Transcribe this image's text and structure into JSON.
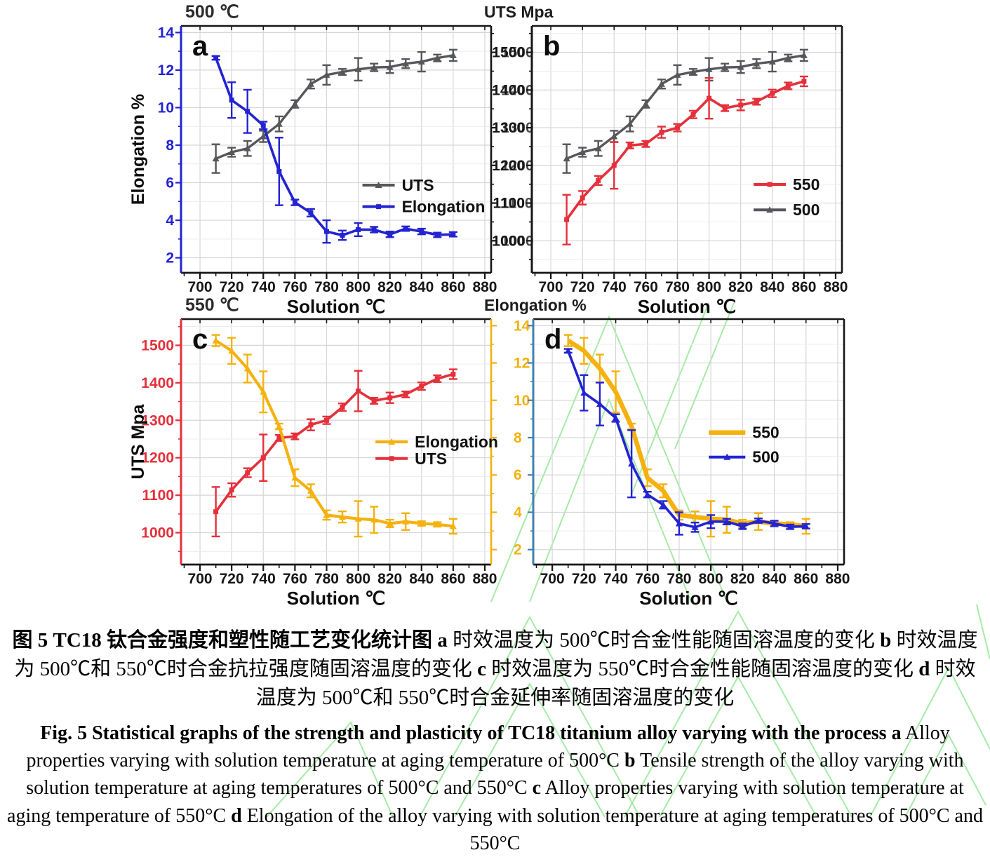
{
  "colors": {
    "blue": "#2323d2",
    "gray": "#56575a",
    "gray_label": "#4a4b4d",
    "red": "#e4303a",
    "yellow": "#f5b10d",
    "axis_d_blue": "#4180b2",
    "dark": "#161616",
    "grid": "#d6d6d6",
    "grid_minor": "#ececec",
    "watermark": "#8fe68f",
    "legend_text": "#111111"
  },
  "chart_data": [
    {
      "panel": "a",
      "type": "line",
      "tag": "a",
      "header_left": "500 ℃",
      "right_axis_title": "UTS Mpa",
      "left_axis_title": "Elongation %",
      "xlabel": "Solution ℃",
      "x_range": [
        688,
        884
      ],
      "x_ticks": [
        700,
        720,
        740,
        760,
        780,
        800,
        820,
        840,
        860,
        880
      ],
      "x_minor": [
        690,
        710,
        730,
        750,
        770,
        790,
        810,
        830,
        850,
        870
      ],
      "left_axis": {
        "range": [
          1.2,
          14.35
        ],
        "ticks": [
          2,
          4,
          6,
          8,
          10,
          12,
          14
        ],
        "minor": [
          3,
          5,
          7,
          9,
          11,
          13
        ],
        "spine": "blue",
        "labels": "blue",
        "label_dx": -10
      },
      "right_axis": {
        "range": [
          915,
          1570
        ],
        "ticks": [
          1000,
          1100,
          1200,
          1300,
          1400,
          1500
        ],
        "minor": [
          950,
          1050,
          1150,
          1250,
          1350,
          1450,
          1550
        ],
        "spine": "dark",
        "labels": "gray_label",
        "label_dx": 14
      },
      "x": [
        710,
        720,
        730,
        740,
        750,
        760,
        770,
        780,
        790,
        800,
        810,
        820,
        830,
        840,
        850,
        860
      ],
      "series": [
        {
          "name": "UTS",
          "axis": "right",
          "color": "gray",
          "marker": "triangle",
          "lw": 3.4,
          "values": [
            1218,
            1235,
            1245,
            1277,
            1310,
            1363,
            1416,
            1440,
            1448,
            1455,
            1460,
            1461,
            1470,
            1475,
            1485,
            1492
          ],
          "errors": [
            38,
            12,
            20,
            15,
            20,
            10,
            12,
            26,
            8,
            30,
            10,
            16,
            12,
            26,
            9,
            15
          ]
        },
        {
          "name": "Elongation",
          "axis": "left",
          "color": "blue",
          "marker": "square",
          "lw": 3.6,
          "values": [
            12.65,
            10.4,
            9.8,
            9.05,
            6.6,
            4.95,
            4.4,
            3.4,
            3.2,
            3.5,
            3.5,
            3.25,
            3.55,
            3.4,
            3.22,
            3.25
          ],
          "errors": [
            0.1,
            0.95,
            1.15,
            0.2,
            1.8,
            0.15,
            0.2,
            0.6,
            0.25,
            0.35,
            0.15,
            0.15,
            0.12,
            0.15,
            0.12,
            0.12
          ]
        }
      ],
      "legend": {
        "lx": 0.585,
        "rows": [
          0.645,
          0.732
        ],
        "len": 46
      }
    },
    {
      "panel": "b",
      "type": "line",
      "tag": "b",
      "xlabel": "Solution ℃",
      "x_range": [
        688,
        884
      ],
      "x_ticks": [
        700,
        720,
        740,
        760,
        780,
        800,
        820,
        840,
        860,
        880
      ],
      "x_minor": [
        690,
        710,
        730,
        750,
        770,
        790,
        810,
        830,
        850,
        870
      ],
      "left_axis": {
        "range": [
          915,
          1570
        ],
        "ticks": [
          1000,
          1100,
          1200,
          1300,
          1400,
          1500
        ],
        "minor": [
          950,
          1050,
          1150,
          1250,
          1350,
          1450,
          1550
        ],
        "spine": "dark",
        "labels": "dark",
        "label_dx": -10
      },
      "x": [
        710,
        720,
        730,
        740,
        750,
        760,
        770,
        780,
        790,
        800,
        810,
        820,
        830,
        840,
        850,
        860
      ],
      "series": [
        {
          "name": "500",
          "axis": "left",
          "color": "gray",
          "marker": "triangle",
          "lw": 3.4,
          "values": [
            1218,
            1235,
            1245,
            1277,
            1310,
            1363,
            1416,
            1440,
            1448,
            1455,
            1460,
            1461,
            1470,
            1475,
            1485,
            1492
          ],
          "errors": [
            38,
            12,
            20,
            15,
            20,
            10,
            12,
            26,
            8,
            30,
            10,
            16,
            12,
            26,
            9,
            15
          ]
        },
        {
          "name": "550",
          "axis": "left",
          "color": "red",
          "marker": "square",
          "lw": 3.6,
          "values": [
            1056,
            1114,
            1160,
            1200,
            1253,
            1257,
            1288,
            1300,
            1335,
            1378,
            1352,
            1360,
            1369,
            1391,
            1411,
            1423
          ],
          "errors": [
            66,
            18,
            12,
            62,
            8,
            8,
            15,
            10,
            10,
            54,
            8,
            14,
            8,
            10,
            9,
            13
          ]
        }
      ],
      "legend_order": [
        "550",
        "500"
      ],
      "legend": {
        "lx": 0.715,
        "rows": [
          0.642,
          0.745
        ],
        "len": 46
      }
    },
    {
      "panel": "c",
      "type": "line",
      "tag": "c",
      "header_left": "550 ℃",
      "right_axis_title": "Elongation %",
      "left_axis_title": "UTS Mpa",
      "xlabel": "Solution ℃",
      "x_range": [
        688,
        884
      ],
      "x_ticks": [
        700,
        720,
        740,
        760,
        780,
        800,
        820,
        840,
        860,
        880
      ],
      "x_minor": [
        690,
        710,
        730,
        750,
        770,
        790,
        810,
        830,
        850,
        870
      ],
      "left_axis": {
        "range": [
          915,
          1570
        ],
        "ticks": [
          1000,
          1100,
          1200,
          1300,
          1400,
          1500
        ],
        "minor": [
          950,
          1050,
          1150,
          1250,
          1350,
          1450,
          1550
        ],
        "spine": "red",
        "labels": "red",
        "label_dx": -10
      },
      "right_axis": {
        "range": [
          1.2,
          14.35
        ],
        "ticks": [
          2,
          4,
          6,
          8,
          10,
          12,
          14
        ],
        "minor": [
          3,
          5,
          7,
          9,
          11,
          13
        ],
        "spine": "yellow",
        "labels": "yellow",
        "label_dx": 32
      },
      "x": [
        710,
        720,
        730,
        740,
        750,
        760,
        770,
        780,
        790,
        800,
        810,
        820,
        830,
        840,
        850,
        860
      ],
      "series": [
        {
          "name": "UTS",
          "axis": "left",
          "color": "red",
          "marker": "square",
          "lw": 3.6,
          "values": [
            1056,
            1114,
            1160,
            1200,
            1253,
            1257,
            1288,
            1300,
            1335,
            1378,
            1352,
            1360,
            1369,
            1391,
            1411,
            1423
          ],
          "errors": [
            66,
            18,
            12,
            62,
            8,
            8,
            15,
            10,
            10,
            54,
            8,
            14,
            8,
            10,
            9,
            13
          ]
        },
        {
          "name": "Elongation",
          "axis": "right",
          "color": "yellow",
          "marker": "triangle",
          "lw": 4.2,
          "values": [
            13.2,
            12.65,
            11.7,
            10.45,
            8.6,
            5.85,
            5.15,
            3.85,
            3.75,
            3.65,
            3.6,
            3.4,
            3.5,
            3.4,
            3.35,
            3.25
          ],
          "errors": [
            0.3,
            0.7,
            0.75,
            1.1,
            0.15,
            0.45,
            0.35,
            0.25,
            0.3,
            0.95,
            0.7,
            0.2,
            0.45,
            0.12,
            0.12,
            0.4
          ]
        }
      ],
      "legend_order": [
        "Elongation",
        "UTS"
      ],
      "legend": {
        "lx": 0.627,
        "rows": [
          0.5,
          0.568
        ],
        "len": 46
      }
    },
    {
      "panel": "d",
      "type": "line",
      "tag": "d",
      "xlabel": "Solution ℃",
      "x_range": [
        688,
        884
      ],
      "x_ticks": [
        700,
        720,
        740,
        760,
        780,
        800,
        820,
        840,
        860,
        880
      ],
      "x_minor": [
        690,
        710,
        730,
        750,
        770,
        790,
        810,
        830,
        850,
        870
      ],
      "left_axis": {
        "range": [
          1.2,
          14.35
        ],
        "ticks": [
          2,
          4,
          6,
          8,
          10,
          12,
          14
        ],
        "minor": [
          3,
          5,
          7,
          9,
          11,
          13
        ],
        "spine": "axis_d_blue",
        "labels": null,
        "label_dx": -10
      },
      "x": [
        710,
        720,
        730,
        740,
        750,
        760,
        770,
        780,
        790,
        800,
        810,
        820,
        830,
        840,
        850,
        860
      ],
      "series": [
        {
          "name": "550",
          "axis": "left",
          "color": "yellow",
          "marker": "none",
          "lw": 6.5,
          "values": [
            13.2,
            12.65,
            11.7,
            10.45,
            8.6,
            5.85,
            5.15,
            3.85,
            3.75,
            3.65,
            3.6,
            3.4,
            3.5,
            3.4,
            3.35,
            3.25
          ],
          "errors": [
            0.3,
            0.7,
            0.75,
            1.1,
            0.15,
            0.45,
            0.35,
            0.25,
            0.3,
            0.95,
            0.7,
            0.2,
            0.45,
            0.12,
            0.12,
            0.4
          ]
        },
        {
          "name": "500",
          "axis": "left",
          "color": "blue",
          "marker": "triangle",
          "lw": 3.6,
          "values": [
            12.65,
            10.4,
            9.8,
            9.05,
            6.6,
            4.95,
            4.4,
            3.4,
            3.2,
            3.5,
            3.5,
            3.25,
            3.55,
            3.4,
            3.22,
            3.25
          ],
          "errors": [
            0.1,
            0.95,
            1.15,
            0.2,
            1.8,
            0.15,
            0.2,
            0.6,
            0.25,
            0.35,
            0.15,
            0.15,
            0.12,
            0.15,
            0.12,
            0.12
          ]
        }
      ],
      "legend_order": [
        "550",
        "500"
      ],
      "legend": {
        "lx": 0.565,
        "rows": [
          0.462,
          0.562
        ],
        "len": 52
      }
    }
  ],
  "caption_cn": [
    {
      "t": "图  5 TC18 钛合金强度和塑性随工艺变化统计图  ",
      "b": 1
    },
    {
      "t": "a",
      "b": 1
    },
    {
      "t": " 时效温度为 500℃时合金性能随固溶温度的变化  ",
      "b": 0
    },
    {
      "t": "b",
      "b": 1
    },
    {
      "t": " 时效温度为 500℃和 550℃时合金抗拉强度随固溶温度的变化  ",
      "b": 0
    },
    {
      "t": "c",
      "b": 1
    },
    {
      "t": " 时效温度为 550℃时合金性能随固溶温度的变化  ",
      "b": 0
    },
    {
      "t": "d",
      "b": 1
    },
    {
      "t": " 时效温度为 500℃和 550℃时合金延伸率随固溶温度的变化",
      "b": 0
    }
  ],
  "caption_en": [
    {
      "t": "Fig. 5 Statistical graphs of the strength and plasticity of TC18 titanium alloy varying with the process ",
      "b": 1
    },
    {
      "t": "a",
      "b": 1
    },
    {
      "t": " Alloy properties varying with solution temperature at aging temperature of 500°C ",
      "b": 0
    },
    {
      "t": "b",
      "b": 1
    },
    {
      "t": " Tensile strength of the alloy varying with solution temperature at aging temperatures of 500°C and 550°C ",
      "b": 0
    },
    {
      "t": "c",
      "b": 1
    },
    {
      "t": " Alloy properties varying with solution temperature at aging temperature of 550°C ",
      "b": 0
    },
    {
      "t": "d",
      "b": 1
    },
    {
      "t": " Elongation of the alloy varying with solution temperature at aging temperatures of 500°C and 550°C",
      "b": 0
    }
  ]
}
